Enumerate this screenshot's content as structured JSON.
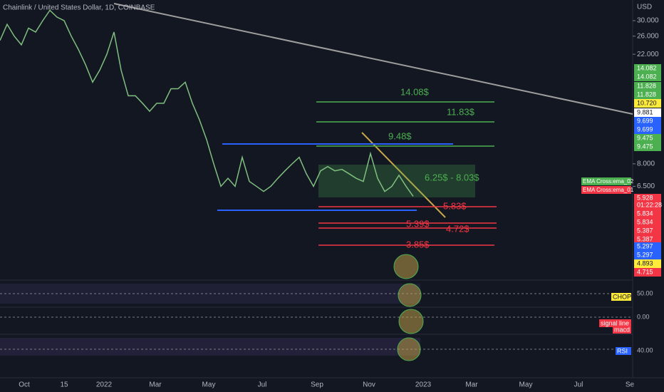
{
  "header": {
    "title": "Chainlink / United States Dollar, 1D, COINBASE",
    "currency": "USD"
  },
  "chart_data": {
    "type": "line",
    "log_scale": true,
    "color": "#7fbf7f",
    "values": [
      25,
      29,
      26,
      24,
      28,
      27,
      30,
      33,
      31,
      30,
      26,
      23,
      20,
      17,
      19,
      22,
      27,
      19,
      15,
      15,
      14,
      13,
      14,
      14,
      16,
      16,
      17,
      14,
      12,
      10,
      8,
      6.5,
      7,
      6.5,
      8.5,
      6.8,
      6.5,
      6.2,
      6.5,
      7,
      7.5,
      8,
      8.5,
      7.3,
      6.5,
      7.5,
      7.8,
      7.5,
      7.6,
      7.3,
      7,
      6.8,
      8.8,
      7,
      6.2,
      6.5,
      7.2,
      6.5,
      5.93
    ],
    "ylim": [
      2.79,
      36.3
    ],
    "yticks": [
      {
        "value": 30,
        "label": "30.000"
      },
      {
        "value": 26,
        "label": "26.000"
      },
      {
        "value": 22,
        "label": "22.000"
      },
      {
        "value": 8,
        "label": "8.000"
      },
      {
        "value": 6.5,
        "label": "6.500"
      }
    ]
  },
  "time_axis": [
    "Oct",
    "15",
    "2022",
    "Mar",
    "May",
    "Jul",
    "Sep",
    "Nov",
    "2023",
    "Mar",
    "May",
    "Jul",
    "Se"
  ],
  "levels": [
    {
      "text": "14.08$",
      "color": "#4caf50"
    },
    {
      "text": "11.83$",
      "color": "#4caf50"
    },
    {
      "text": "9.48$",
      "color": "#4caf50"
    },
    {
      "text": "6.25$ - 8.03$",
      "color": "#4caf50"
    },
    {
      "text": "5.83$",
      "color": "#f23645"
    },
    {
      "text": "5.39$",
      "color": "#f23645"
    },
    {
      "text": "4.72$",
      "color": "#f23645"
    },
    {
      "text": "3.85$",
      "color": "#f23645"
    }
  ],
  "badges": [
    {
      "text": "14.082",
      "color": "#4caf50"
    },
    {
      "text": "14.082",
      "color": "#4caf50"
    },
    {
      "text": "11.828",
      "color": "#4caf50"
    },
    {
      "text": "11.828",
      "color": "#4caf50"
    },
    {
      "text": "10.720",
      "color": "#ffeb3b"
    },
    {
      "text": "9.881",
      "color": "#ffffff"
    },
    {
      "text": "9.699",
      "color": "#2962ff"
    },
    {
      "text": "9.699",
      "color": "#2962ff"
    },
    {
      "text": "9.475",
      "color": "#4caf50"
    },
    {
      "text": "9.475",
      "color": "#4caf50"
    },
    {
      "text": "5.928",
      "color": "#f23645"
    },
    {
      "text": "01:22:28",
      "color": "#f23645"
    },
    {
      "text": "5.834",
      "color": "#f23645"
    },
    {
      "text": "5.834",
      "color": "#f23645"
    },
    {
      "text": "5.387",
      "color": "#f23645"
    },
    {
      "text": "5.387",
      "color": "#f23645"
    },
    {
      "text": "5.297",
      "color": "#2962ff"
    },
    {
      "text": "5.297",
      "color": "#2962ff"
    },
    {
      "text": "4.893",
      "color": "#ffeb3b"
    },
    {
      "text": "4.715",
      "color": "#f23645"
    }
  ],
  "ema_labels": [
    {
      "text": "EMA Cross:ema_02",
      "color": "#4caf50"
    },
    {
      "text": "EMA Cross:ema_01",
      "color": "#f23645"
    }
  ],
  "indicators": {
    "chop": "CHOP",
    "chop_level": "50.00",
    "macd_level": "0.00",
    "signal": "signal line",
    "macd": "macd",
    "rsi": "RSI",
    "rsi_level": "40.00"
  }
}
